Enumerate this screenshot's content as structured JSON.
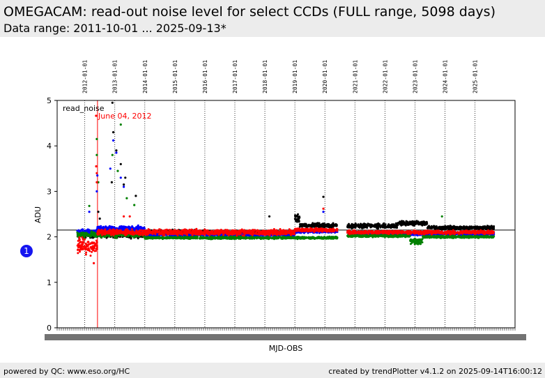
{
  "header": {
    "title": "OMEGACAM: read-out noise level for select CCDs (FULL range, 5098 days)",
    "subtitle": "Data range: 2011-10-01 ... 2025-09-13*"
  },
  "footer": {
    "left": "powered by QC: www.eso.org/HC",
    "right": "created by trendPlotter v4.1.2 on 2025-09-14T16:00:12"
  },
  "badge": {
    "label": "1"
  },
  "colors": {
    "red": "#ff0000",
    "green": "#008000",
    "blue": "#0000ff",
    "black": "#000000",
    "header_bg": "#ececec",
    "badge": "#1515f0"
  },
  "chart_data": {
    "type": "scatter",
    "title": "",
    "xlabel": "MJD-OBS",
    "ylabel": "ADU",
    "ylim": [
      0,
      5
    ],
    "yticks": [
      0,
      1,
      2,
      3,
      4,
      5
    ],
    "grid": "vertical dotted lines at year boundaries",
    "legend": "top-left",
    "legend_label": "read_noise",
    "reference_line": 2.15,
    "annotation": {
      "date": "2012-06-04",
      "text": "June 04, 2012",
      "color": "red"
    },
    "date_labels": [
      "2012-01-01",
      "2013-01-01",
      "2014-01-01",
      "2015-01-01",
      "2016-01-01",
      "2017-01-01",
      "2018-01-01",
      "2019-01-01",
      "2020-01-01",
      "2021-01-01",
      "2022-01-01",
      "2023-01-01",
      "2024-01-01",
      "2025-01-01"
    ],
    "x_range_dates": [
      "2011-01-30",
      "2026-05-03"
    ],
    "series": [
      {
        "color": "black",
        "segments": [
          [
            "2011-10-01",
            "2012-06-01",
            2.04,
            0.05
          ],
          [
            "2012-06-01",
            "2013-01-01",
            2.05,
            0.05
          ],
          [
            "2013-01-01",
            "2014-01-01",
            2.05,
            0.06
          ],
          [
            "2014-01-01",
            "2016-01-01",
            2.1,
            0.04
          ],
          [
            "2016-01-01",
            "2018-01-01",
            2.08,
            0.04
          ],
          [
            "2018-01-01",
            "2019-01-01",
            2.08,
            0.04
          ],
          [
            "2019-01-01",
            "2019-03-01",
            2.4,
            0.1
          ],
          [
            "2019-03-01",
            "2020-06-01",
            2.25,
            0.04
          ],
          [
            "2020-10-01",
            "2022-06-01",
            2.24,
            0.04
          ],
          [
            "2022-06-01",
            "2023-06-01",
            2.3,
            0.04
          ],
          [
            "2023-06-01",
            "2025-08-20",
            2.2,
            0.03
          ]
        ],
        "outliers": [
          [
            2012.92,
            4.95
          ],
          [
            2012.95,
            4.3
          ],
          [
            2013.05,
            3.9
          ],
          [
            2013.2,
            3.6
          ],
          [
            2013.35,
            3.3
          ],
          [
            2013.3,
            3.15
          ],
          [
            2012.9,
            3.2
          ],
          [
            2018.15,
            2.45
          ],
          [
            2019.95,
            2.88
          ],
          [
            2013.7,
            2.9
          ],
          [
            2012.5,
            2.4
          ],
          [
            2012.45,
            2.55
          ]
        ]
      },
      {
        "color": "blue",
        "segments": [
          [
            "2011-10-01",
            "2012-06-01",
            2.1,
            0.06
          ],
          [
            "2012-06-01",
            "2014-01-01",
            2.18,
            0.05
          ],
          [
            "2014-01-01",
            "2019-01-01",
            2.05,
            0.03
          ],
          [
            "2019-01-01",
            "2020-06-01",
            2.12,
            0.03
          ],
          [
            "2020-10-01",
            "2025-08-20",
            2.07,
            0.03
          ]
        ],
        "outliers": [
          [
            2012.4,
            3.0
          ],
          [
            2012.42,
            3.35
          ],
          [
            2012.95,
            4.12
          ],
          [
            2013.05,
            3.85
          ],
          [
            2013.2,
            3.3
          ],
          [
            2013.3,
            3.1
          ],
          [
            2012.85,
            3.5
          ],
          [
            2012.15,
            2.55
          ],
          [
            2019.95,
            2.55
          ]
        ]
      },
      {
        "color": "green",
        "segments": [
          [
            "2011-10-01",
            "2012-06-01",
            2.05,
            0.05
          ],
          [
            "2012-06-01",
            "2014-01-01",
            2.05,
            0.05
          ],
          [
            "2014-01-01",
            "2020-06-01",
            1.98,
            0.02
          ],
          [
            "2020-10-01",
            "2022-11-01",
            2.02,
            0.02
          ],
          [
            "2022-11-01",
            "2023-04-01",
            1.9,
            0.05
          ],
          [
            "2023-04-01",
            "2025-08-20",
            2.0,
            0.02
          ]
        ],
        "outliers": [
          [
            2012.4,
            4.15
          ],
          [
            2012.4,
            3.8
          ],
          [
            2012.45,
            3.2
          ],
          [
            2012.92,
            3.8
          ],
          [
            2013.2,
            4.47
          ],
          [
            2013.1,
            3.45
          ],
          [
            2013.4,
            2.85
          ],
          [
            2012.15,
            2.68
          ],
          [
            2013.65,
            2.7
          ],
          [
            2023.9,
            2.45
          ]
        ]
      },
      {
        "color": "red",
        "segments": [
          [
            "2011-10-01",
            "2012-06-01",
            1.8,
            0.14
          ],
          [
            "2012-06-01",
            "2014-01-01",
            2.1,
            0.05
          ],
          [
            "2014-01-01",
            "2019-01-01",
            2.1,
            0.05
          ],
          [
            "2019-01-01",
            "2020-06-01",
            2.15,
            0.03
          ],
          [
            "2020-10-01",
            "2025-08-20",
            2.1,
            0.03
          ]
        ],
        "outliers": [
          [
            2012.38,
            3.55
          ],
          [
            2012.4,
            3.4
          ],
          [
            2012.4,
            3.2
          ],
          [
            2012.3,
            1.42
          ],
          [
            2013.3,
            2.45
          ],
          [
            2013.5,
            2.45
          ],
          [
            2019.95,
            2.62
          ]
        ]
      }
    ]
  }
}
